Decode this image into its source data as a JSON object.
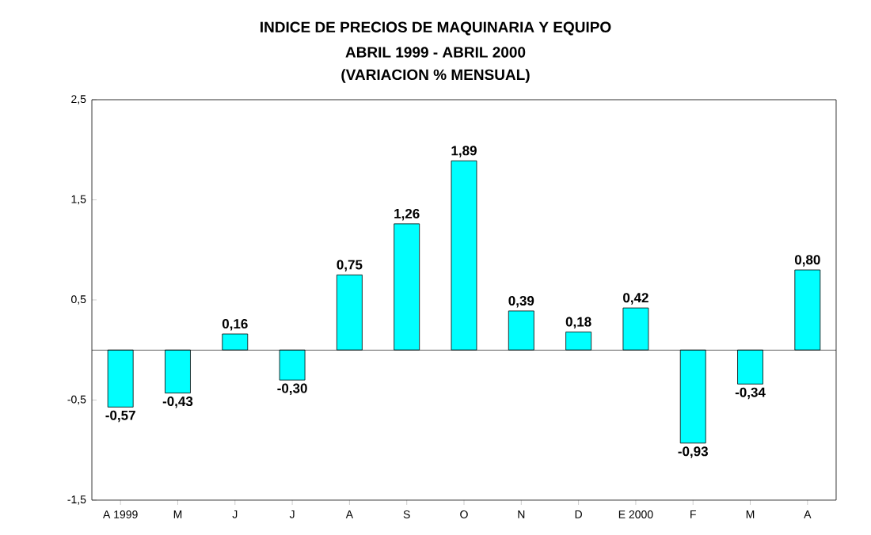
{
  "chart_data": {
    "type": "bar",
    "title": "INDICE DE PRECIOS DE MAQUINARIA Y EQUIPO",
    "subtitle": "ABRIL 1999 - ABRIL 2000",
    "annotations": [
      "(VARIACION % MENSUAL)"
    ],
    "categories": [
      "A 1999",
      "M",
      "J",
      "J",
      "A",
      "S",
      "O",
      "N",
      "D",
      "E 2000",
      "F",
      "M",
      "A"
    ],
    "values": [
      -0.57,
      -0.43,
      0.16,
      -0.3,
      0.75,
      1.26,
      1.89,
      0.39,
      0.18,
      0.42,
      -0.93,
      -0.34,
      0.8
    ],
    "value_labels": [
      "-0,57",
      "-0,43",
      "0,16",
      "-0,30",
      "0,75",
      "1,26",
      "1,89",
      "0,39",
      "0,18",
      "0,42",
      "-0,93",
      "-0,34",
      "0,80"
    ],
    "color": "#00ffff",
    "ylim": [
      -1.5,
      2.5
    ],
    "yticks": [
      {
        "value": -1.5,
        "label": "-1,5"
      },
      {
        "value": -0.5,
        "label": "-0,5"
      },
      {
        "value": 0.5,
        "label": "0,5"
      },
      {
        "value": 1.5,
        "label": "1,5"
      },
      {
        "value": 2.5,
        "label": "2,5"
      }
    ],
    "grid": false
  }
}
